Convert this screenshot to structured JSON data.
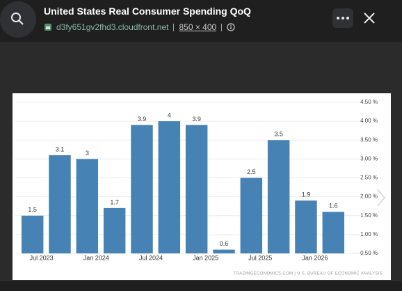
{
  "header": {
    "title": "United States Real Consumer Spending QoQ",
    "source": "d3fy651gv2fhd3.cloudfront.net",
    "dimensions": "850 × 400"
  },
  "chart_data": {
    "type": "bar",
    "categories": [
      "Jul 2023",
      null,
      "Jan 2024",
      null,
      "Jul 2024",
      null,
      "Jan 2025",
      null,
      "Jul 2025",
      null,
      "Jan 2026",
      null
    ],
    "values": [
      1.5,
      3.1,
      3,
      1.7,
      3.9,
      4,
      3.9,
      0.6,
      2.5,
      3.5,
      1.9,
      1.6
    ],
    "color": "#4682b4",
    "ylim": [
      0.5,
      4.5
    ],
    "yticks": [
      {
        "value": 0.5,
        "label": "0.50 %"
      },
      {
        "value": 1,
        "label": "1.00 %"
      },
      {
        "value": 1.5,
        "label": "1.50 %"
      },
      {
        "value": 2,
        "label": "2.00 %"
      },
      {
        "value": 2.5,
        "label": "2.50 %"
      },
      {
        "value": 3,
        "label": "3.00 %"
      },
      {
        "value": 3.5,
        "label": "3.50 %"
      },
      {
        "value": 4,
        "label": "4.00 %"
      },
      {
        "value": 4.5,
        "label": "4.50 %"
      }
    ],
    "grid": true,
    "footer": "TRADINGECONOMICS.COM  |  U.S. BUREAU OF ECONOMIC ANALYSIS"
  }
}
